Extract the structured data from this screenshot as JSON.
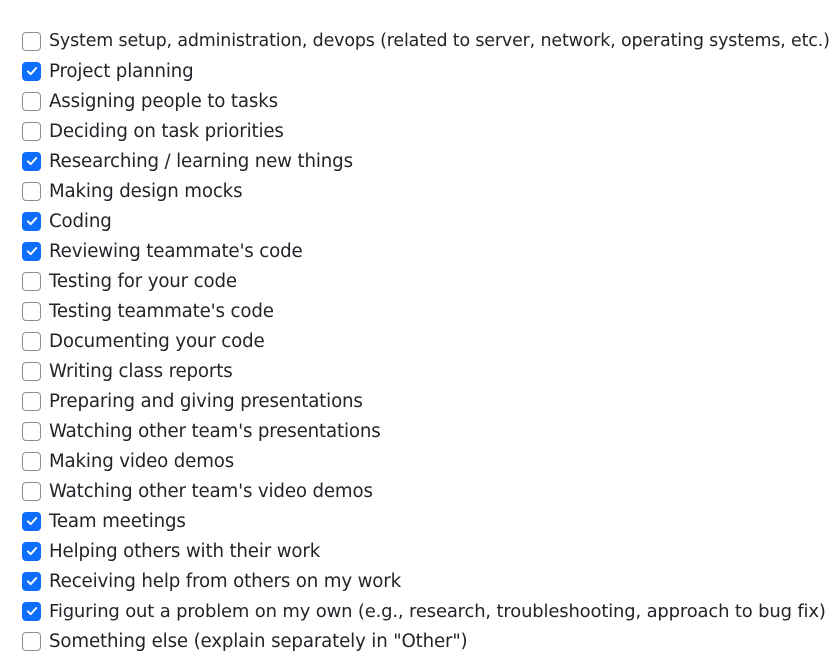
{
  "colors": {
    "checked_fill": "#0d6efd",
    "unchecked_border": "#8a8f94",
    "text": "#212529"
  },
  "options": [
    {
      "label": "System setup, administration, devops (related to server, network, operating systems, etc.)",
      "checked": false
    },
    {
      "label": "Project planning",
      "checked": true
    },
    {
      "label": "Assigning people to tasks",
      "checked": false
    },
    {
      "label": "Deciding on task priorities",
      "checked": false
    },
    {
      "label": "Researching / learning new things",
      "checked": true
    },
    {
      "label": "Making design mocks",
      "checked": false
    },
    {
      "label": "Coding",
      "checked": true
    },
    {
      "label": "Reviewing teammate's code",
      "checked": true
    },
    {
      "label": "Testing for your code",
      "checked": false
    },
    {
      "label": "Testing teammate's code",
      "checked": false
    },
    {
      "label": "Documenting your code",
      "checked": false
    },
    {
      "label": "Writing class reports",
      "checked": false
    },
    {
      "label": "Preparing and giving presentations",
      "checked": false
    },
    {
      "label": "Watching other team's presentations",
      "checked": false
    },
    {
      "label": "Making video demos",
      "checked": false
    },
    {
      "label": "Watching other team's video demos",
      "checked": false
    },
    {
      "label": "Team meetings",
      "checked": true
    },
    {
      "label": "Helping others with their work",
      "checked": true
    },
    {
      "label": "Receiving help from others on my work",
      "checked": true
    },
    {
      "label": "Figuring out a problem on my own (e.g., research, troubleshooting, approach to bug fix)",
      "checked": true
    },
    {
      "label": "Something else (explain separately in \"Other\")",
      "checked": false
    }
  ]
}
